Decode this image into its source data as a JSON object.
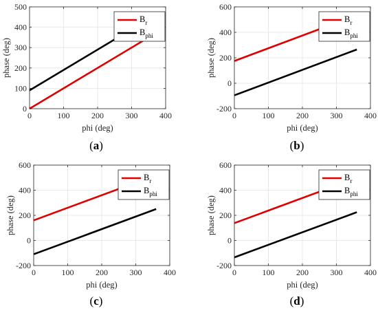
{
  "figure": {
    "panel_captions": [
      "(a)",
      "(b)",
      "(c)",
      "(d)"
    ],
    "caption_letters": [
      "a",
      "b",
      "c",
      "d"
    ]
  },
  "chart_data": [
    {
      "type": "line",
      "panel": "a",
      "xlabel": "phi (deg)",
      "ylabel": "phase (deg)",
      "xlim": [
        0,
        400
      ],
      "ylim": [
        0,
        500
      ],
      "xticks": [
        0,
        100,
        200,
        300,
        400
      ],
      "yticks": [
        0,
        100,
        200,
        300,
        400,
        500
      ],
      "grid": true,
      "legend": "top-right",
      "series": [
        {
          "name": "B_r",
          "legend_main": "B",
          "legend_sub": "r",
          "color": "#e00000",
          "x": [
            0,
            360
          ],
          "y": [
            0,
            360
          ]
        },
        {
          "name": "B_phi",
          "legend_main": "B",
          "legend_sub": "phi",
          "color": "#000000",
          "x": [
            0,
            360
          ],
          "y": [
            90,
            450
          ]
        }
      ]
    },
    {
      "type": "line",
      "panel": "b",
      "xlabel": "phi (deg)",
      "ylabel": "phase (deg)",
      "xlim": [
        0,
        400
      ],
      "ylim": [
        -200,
        600
      ],
      "xticks": [
        0,
        100,
        200,
        300,
        400
      ],
      "yticks": [
        -200,
        0,
        200,
        400,
        600
      ],
      "grid": true,
      "legend": "top-right",
      "series": [
        {
          "name": "B_r",
          "legend_main": "B",
          "legend_sub": "r",
          "color": "#e00000",
          "x": [
            0,
            360
          ],
          "y": [
            175,
            535
          ]
        },
        {
          "name": "B_phi",
          "legend_main": "B",
          "legend_sub": "phi",
          "color": "#000000",
          "x": [
            0,
            360
          ],
          "y": [
            -95,
            265
          ]
        }
      ]
    },
    {
      "type": "line",
      "panel": "c",
      "xlabel": "phi (deg)",
      "ylabel": "phase (deg)",
      "xlim": [
        0,
        400
      ],
      "ylim": [
        -200,
        600
      ],
      "xticks": [
        0,
        100,
        200,
        300,
        400
      ],
      "yticks": [
        -200,
        0,
        200,
        400,
        600
      ],
      "grid": true,
      "legend": "top-right",
      "series": [
        {
          "name": "B_r",
          "legend_main": "B",
          "legend_sub": "r",
          "color": "#e00000",
          "x": [
            0,
            360
          ],
          "y": [
            160,
            520
          ]
        },
        {
          "name": "B_phi",
          "legend_main": "B",
          "legend_sub": "phi",
          "color": "#000000",
          "x": [
            0,
            360
          ],
          "y": [
            -110,
            250
          ]
        }
      ]
    },
    {
      "type": "line",
      "panel": "d",
      "xlabel": "phi (deg)",
      "ylabel": "phase (deg)",
      "xlim": [
        0,
        400
      ],
      "ylim": [
        -200,
        600
      ],
      "xticks": [
        0,
        100,
        200,
        300,
        400
      ],
      "yticks": [
        -200,
        0,
        200,
        400,
        600
      ],
      "grid": true,
      "legend": "top-right",
      "series": [
        {
          "name": "B_r",
          "legend_main": "B",
          "legend_sub": "r",
          "color": "#e00000",
          "x": [
            0,
            360
          ],
          "y": [
            138,
            498
          ]
        },
        {
          "name": "B_phi",
          "legend_main": "B",
          "legend_sub": "phi",
          "color": "#000000",
          "x": [
            0,
            360
          ],
          "y": [
            -135,
            225
          ]
        }
      ]
    }
  ]
}
